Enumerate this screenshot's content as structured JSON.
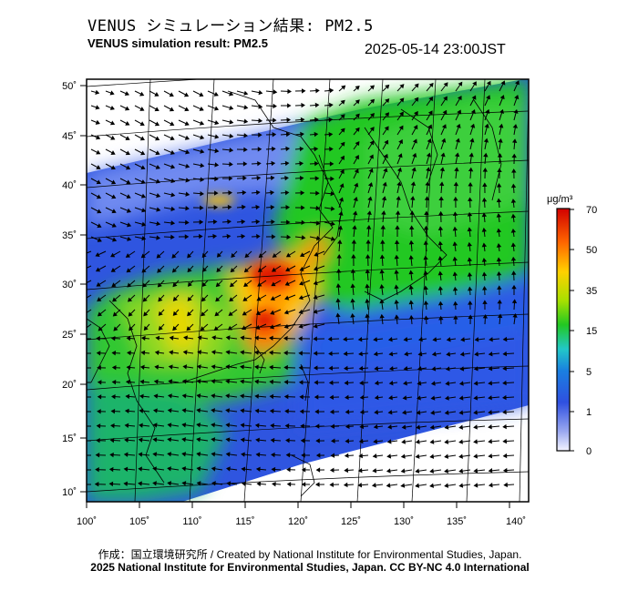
{
  "header": {
    "title_jp": "VENUS シミュレーション結果: PM2.5",
    "title_en": "VENUS simulation result: PM2.5",
    "timestamp": "2025-05-14 23:00JST"
  },
  "axes": {
    "lon_ticks": [
      "100˚",
      "105˚",
      "110˚",
      "115˚",
      "120˚",
      "125˚",
      "130˚",
      "135˚",
      "140˚"
    ],
    "lat_ticks": [
      "50˚",
      "45˚",
      "40˚",
      "35˚",
      "30˚",
      "25˚",
      "20˚",
      "15˚",
      "10˚"
    ]
  },
  "colorbar": {
    "unit": "μg/m³",
    "labels": [
      "70",
      "50",
      "35",
      "15",
      "5",
      "1",
      "0"
    ],
    "colors": [
      "#d10000",
      "#ff6600",
      "#ffd000",
      "#a8e000",
      "#22c822",
      "#22c8c8",
      "#1a7fe0",
      "#2f50e0",
      "#9aa8f0",
      "#f4f4ff"
    ]
  },
  "footer": {
    "credit_line": "作成：国立環境研究所 / Created by National Institute for Environmental Studies, Japan.",
    "license_line": "2025 National Institute for Environmental Studies, Japan. CC BY-NC 4.0 International"
  }
}
